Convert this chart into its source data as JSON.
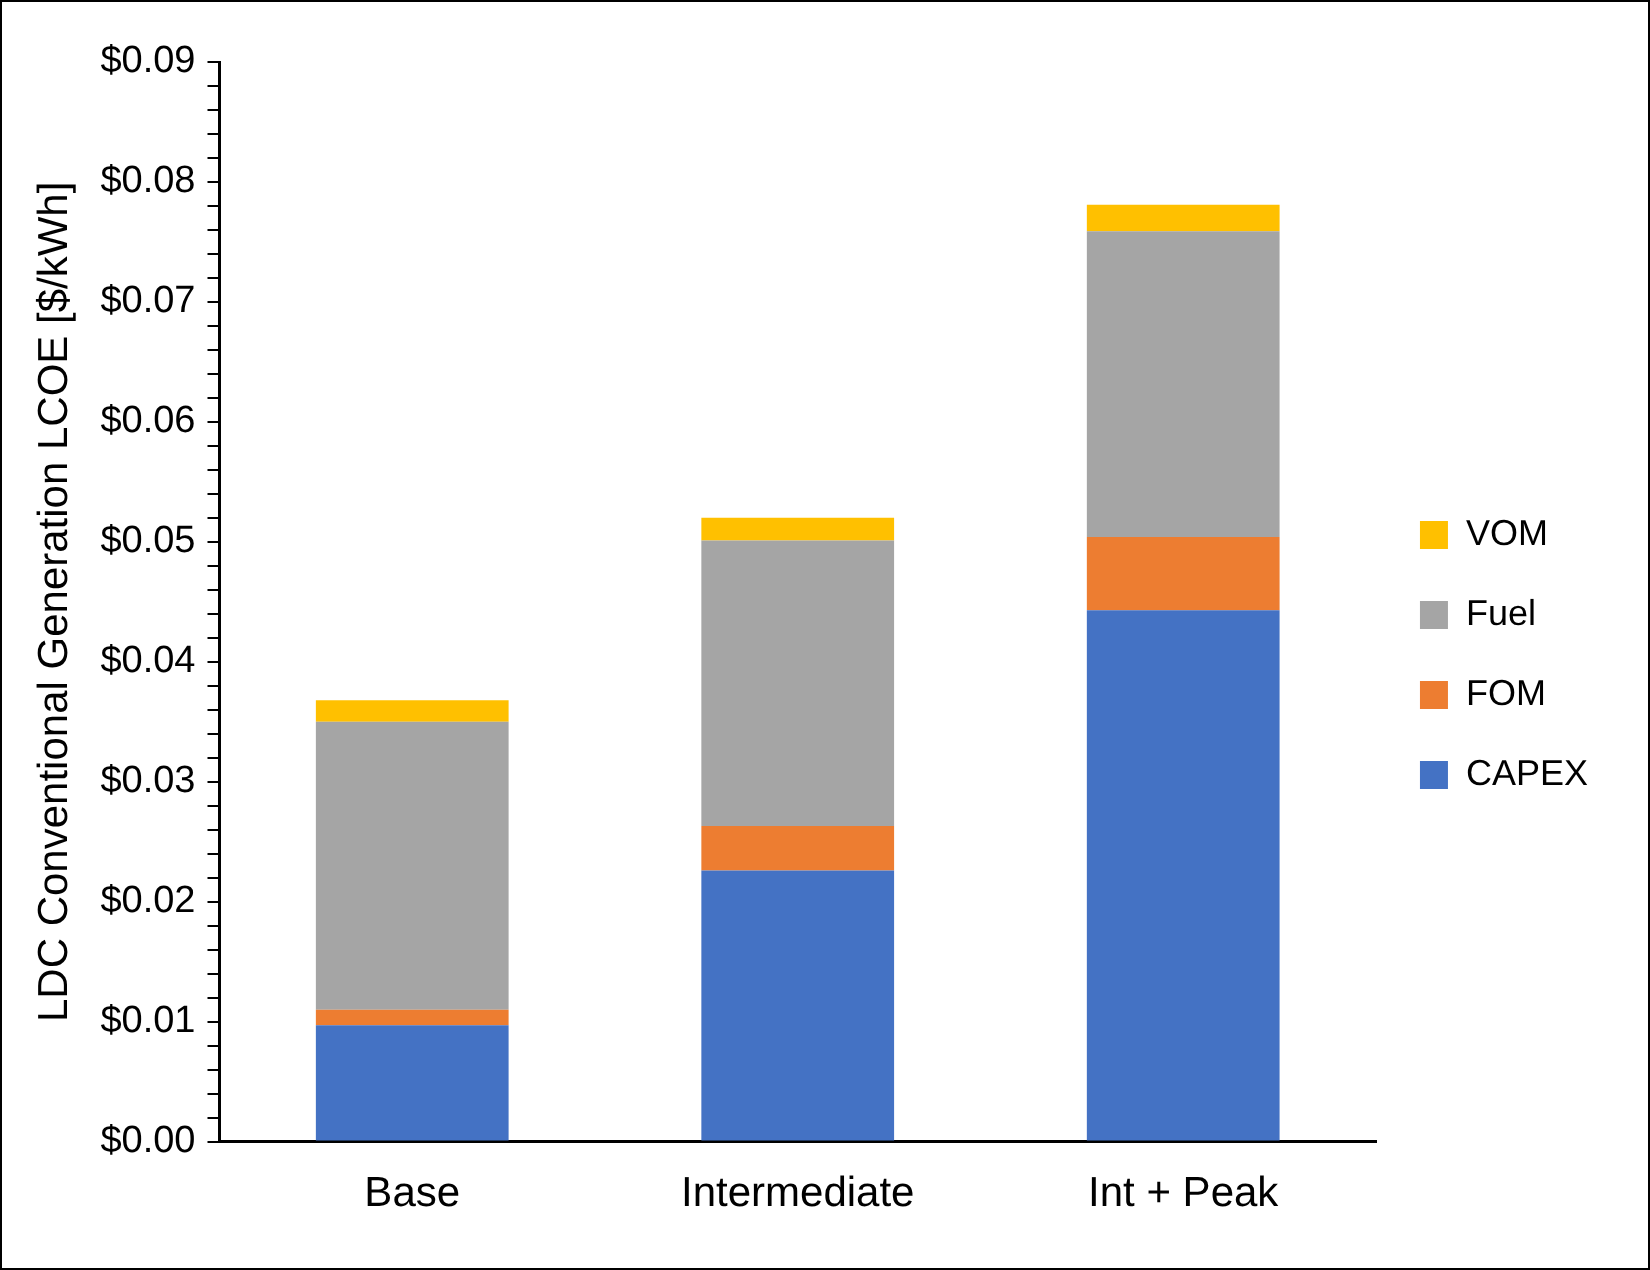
{
  "chart_data": {
    "type": "bar",
    "stacked": true,
    "ylabel": "LDC Conventional Generation LCOE [$/kWh]",
    "categories": [
      "Base",
      "Intermediate",
      "Int + Peak"
    ],
    "series": [
      {
        "name": "CAPEX",
        "color": "#4472c4",
        "values": [
          0.0097,
          0.0226,
          0.0443
        ]
      },
      {
        "name": "FOM",
        "color": "#ed7d31",
        "values": [
          0.0013,
          0.0037,
          0.0061
        ]
      },
      {
        "name": "Fuel",
        "color": "#a5a5a5",
        "values": [
          0.024,
          0.0238,
          0.0255
        ]
      },
      {
        "name": "VOM",
        "color": "#ffc000",
        "values": [
          0.0018,
          0.0019,
          0.0022
        ]
      }
    ],
    "ylim": [
      0,
      0.09
    ],
    "yticks": [
      {
        "value": 0,
        "label": "$0.00"
      },
      {
        "value": 0.002,
        "label": null
      },
      {
        "value": 0.004,
        "label": null
      },
      {
        "value": 0.006,
        "label": null
      },
      {
        "value": 0.008,
        "label": null
      },
      {
        "value": 0.01,
        "label": "$0.01"
      },
      {
        "value": 0.012,
        "label": null
      },
      {
        "value": 0.014,
        "label": null
      },
      {
        "value": 0.016,
        "label": null
      },
      {
        "value": 0.018,
        "label": null
      },
      {
        "value": 0.02,
        "label": "$0.02"
      },
      {
        "value": 0.022,
        "label": null
      },
      {
        "value": 0.024,
        "label": null
      },
      {
        "value": 0.026,
        "label": null
      },
      {
        "value": 0.028,
        "label": null
      },
      {
        "value": 0.03,
        "label": "$0.03"
      },
      {
        "value": 0.032,
        "label": null
      },
      {
        "value": 0.034,
        "label": null
      },
      {
        "value": 0.036,
        "label": null
      },
      {
        "value": 0.038,
        "label": null
      },
      {
        "value": 0.04,
        "label": "$0.04"
      },
      {
        "value": 0.042,
        "label": null
      },
      {
        "value": 0.044,
        "label": null
      },
      {
        "value": 0.046,
        "label": null
      },
      {
        "value": 0.048,
        "label": null
      },
      {
        "value": 0.05,
        "label": "$0.05"
      },
      {
        "value": 0.052,
        "label": null
      },
      {
        "value": 0.054,
        "label": null
      },
      {
        "value": 0.056,
        "label": null
      },
      {
        "value": 0.058,
        "label": null
      },
      {
        "value": 0.06,
        "label": "$0.06"
      },
      {
        "value": 0.062,
        "label": null
      },
      {
        "value": 0.064,
        "label": null
      },
      {
        "value": 0.066,
        "label": null
      },
      {
        "value": 0.068,
        "label": null
      },
      {
        "value": 0.07,
        "label": "$0.07"
      },
      {
        "value": 0.072,
        "label": null
      },
      {
        "value": 0.074,
        "label": null
      },
      {
        "value": 0.076,
        "label": null
      },
      {
        "value": 0.078,
        "label": null
      },
      {
        "value": 0.08,
        "label": "$0.08"
      },
      {
        "value": 0.082,
        "label": null
      },
      {
        "value": 0.084,
        "label": null
      },
      {
        "value": 0.086,
        "label": null
      },
      {
        "value": 0.088,
        "label": null
      },
      {
        "value": 0.09,
        "label": "$0.09"
      }
    ],
    "grid": false,
    "legend": "right"
  }
}
